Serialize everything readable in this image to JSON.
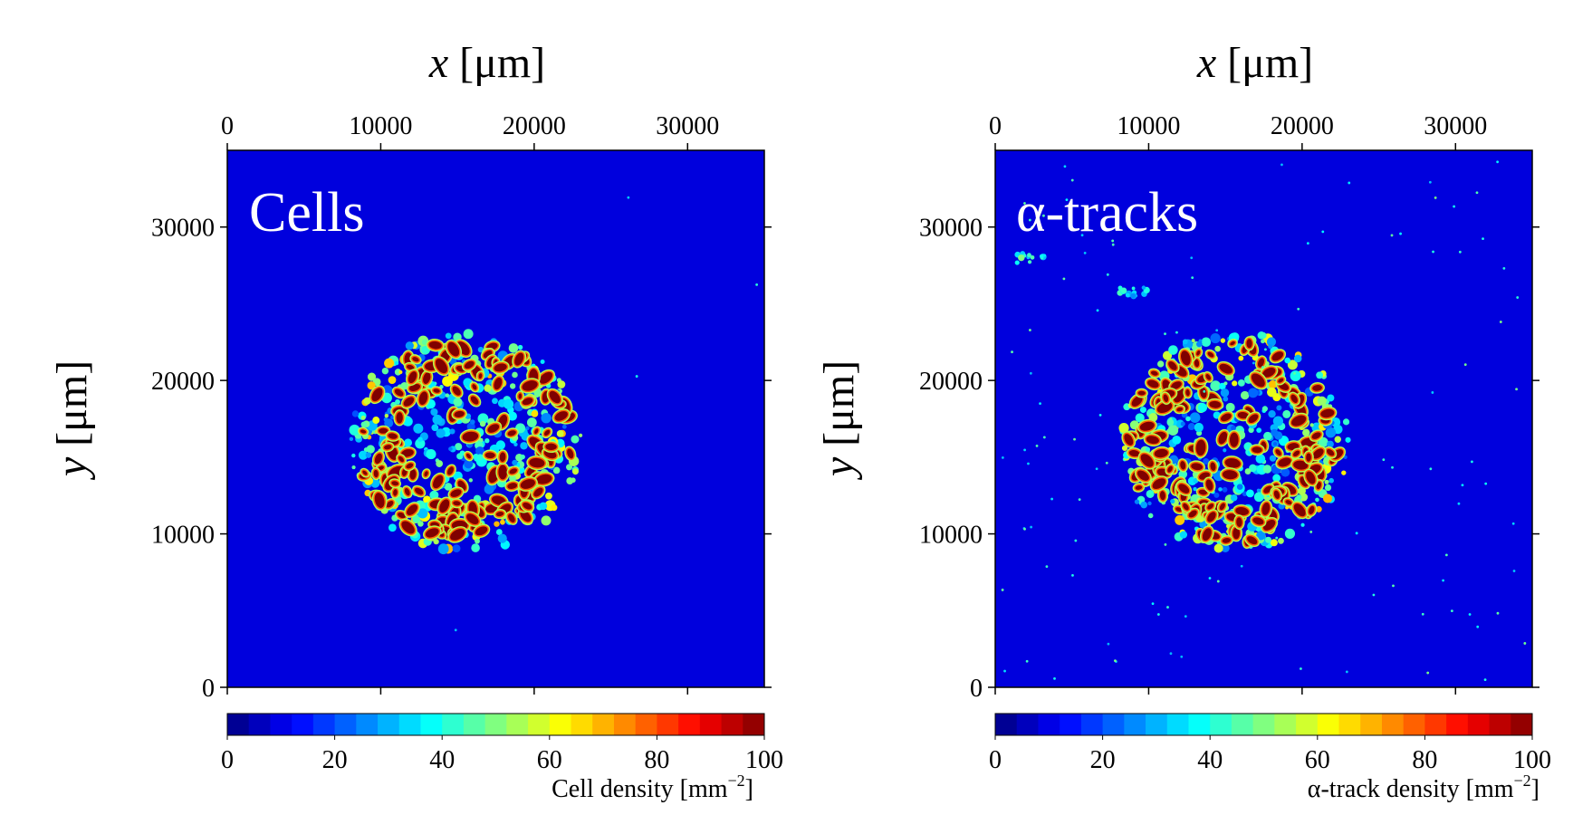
{
  "chart_data": [
    {
      "type": "heatmap",
      "panel_label": "Cells",
      "xlabel_var": "x",
      "xlabel_unit": " [μm]",
      "ylabel_var": "y",
      "ylabel_unit": " [μm]",
      "xlim": [
        0,
        35000
      ],
      "ylim": [
        0,
        35000
      ],
      "x_ticks": [
        0,
        10000,
        20000,
        30000
      ],
      "y_ticks": [
        0,
        10000,
        20000,
        30000
      ],
      "colorbar": {
        "label_text": "Cell density [mm",
        "label_sup": "−2",
        "label_close": "]",
        "range": [
          0,
          100
        ],
        "ticks": [
          0,
          20,
          40,
          60,
          80,
          100
        ]
      },
      "blob": {
        "center": [
          15500,
          16000
        ],
        "radius": 7200
      },
      "background_value": 0,
      "ring_peak_value": 100,
      "scatter_count": 4
    },
    {
      "type": "heatmap",
      "panel_label": "α-tracks",
      "xlabel_var": "x",
      "xlabel_unit": " [μm]",
      "ylabel_var": "y",
      "ylabel_unit": " [μm]",
      "xlim": [
        0,
        35000
      ],
      "ylim": [
        0,
        35000
      ],
      "x_ticks": [
        0,
        10000,
        20000,
        30000
      ],
      "y_ticks": [
        0,
        10000,
        20000,
        30000
      ],
      "colorbar": {
        "label_text": "α-track density [mm",
        "label_sup": "−2",
        "label_close": "]",
        "range": [
          0,
          100
        ],
        "ticks": [
          0,
          20,
          40,
          60,
          80,
          100
        ]
      },
      "blob": {
        "center": [
          15500,
          16000
        ],
        "radius": 7200
      },
      "background_value": 0,
      "ring_peak_value": 100,
      "scatter_count": 110,
      "hotspots": [
        {
          "x": 2500,
          "y": 28000,
          "value": 40
        },
        {
          "x": 9000,
          "y": 25800,
          "value": 35
        }
      ]
    }
  ]
}
